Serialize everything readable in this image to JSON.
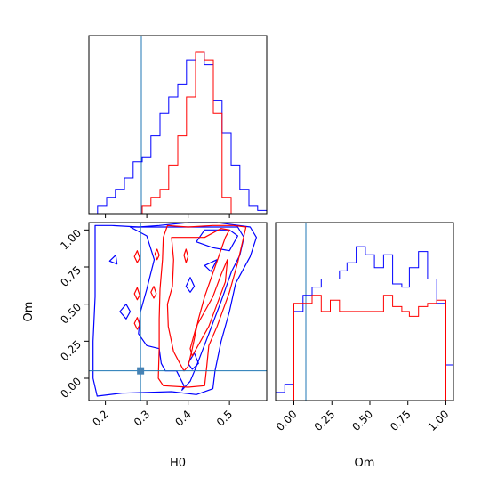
{
  "chart_data": {
    "type": "corner",
    "parameters": [
      "H0",
      "Om"
    ],
    "xlabels": {
      "H0": "H0",
      "Om": "Om"
    },
    "ylabel_lower_left": "Om",
    "truth": {
      "H0": 0.285,
      "Om": 0.05
    },
    "truth_color": "#1f77b4",
    "series": [
      {
        "color": "#0000ff"
      },
      {
        "color": "#ff0000"
      }
    ],
    "panels": [
      {
        "id": "hist-H0",
        "type": "histogram-step",
        "xlim": [
          0.16,
          0.59
        ],
        "bin_edges": [
          0.16,
          0.181,
          0.203,
          0.224,
          0.246,
          0.267,
          0.289,
          0.31,
          0.332,
          0.353,
          0.375,
          0.396,
          0.418,
          0.439,
          0.461,
          0.482,
          0.504,
          0.525,
          0.547,
          0.568,
          0.59
        ],
        "counts_blue": [
          0.0,
          0.05,
          0.1,
          0.15,
          0.22,
          0.32,
          0.35,
          0.48,
          0.62,
          0.72,
          0.8,
          0.95,
          1.0,
          0.92,
          0.7,
          0.5,
          0.3,
          0.15,
          0.05,
          0.02
        ],
        "counts_red": [
          0.0,
          0.0,
          0.0,
          0.0,
          0.0,
          0.0,
          0.05,
          0.1,
          0.15,
          0.3,
          0.48,
          0.72,
          1.0,
          0.95,
          0.62,
          0.1,
          0.0,
          0.0,
          0.0,
          0.0
        ],
        "xticks": [
          0.2,
          0.3,
          0.4,
          0.5
        ]
      },
      {
        "id": "hist-Om",
        "type": "histogram-step",
        "xlim": [
          -0.12,
          1.05
        ],
        "bin_edges": [
          -0.12,
          -0.06,
          0.0,
          0.06,
          0.12,
          0.18,
          0.24,
          0.3,
          0.35,
          0.41,
          0.47,
          0.53,
          0.59,
          0.65,
          0.71,
          0.76,
          0.82,
          0.88,
          0.94,
          1.0,
          1.05
        ],
        "counts_blue": [
          0.05,
          0.1,
          0.55,
          0.65,
          0.7,
          0.75,
          0.75,
          0.8,
          0.85,
          0.95,
          0.9,
          0.82,
          0.9,
          0.72,
          0.7,
          0.82,
          0.92,
          0.75,
          0.6,
          0.22
        ],
        "counts_red": [
          0.0,
          0.0,
          0.6,
          0.6,
          0.65,
          0.55,
          0.62,
          0.55,
          0.55,
          0.55,
          0.55,
          0.55,
          0.65,
          0.58,
          0.55,
          0.52,
          0.58,
          0.6,
          0.62,
          0.0
        ],
        "xticks": [
          0.0,
          0.25,
          0.5,
          0.75,
          1.0
        ],
        "xticklabels": [
          "0.00",
          "0.25",
          "0.50",
          "0.75",
          "1.00"
        ]
      },
      {
        "id": "contour-H0-Om",
        "type": "contour",
        "xlim": [
          0.16,
          0.59
        ],
        "ylim": [
          -0.15,
          1.05
        ],
        "xticks": [
          0.2,
          0.3,
          0.4,
          0.5
        ],
        "xticklabels": [
          "0.2",
          "0.3",
          "0.4",
          "0.5"
        ],
        "yticks": [
          0.0,
          0.25,
          0.5,
          0.75,
          1.0
        ],
        "yticklabels": [
          "0.00",
          "0.25",
          "0.50",
          "0.75",
          "1.00"
        ],
        "contours_blue": [
          [
            [
              0.175,
              1.03
            ],
            [
              0.215,
              1.03
            ],
            [
              0.28,
              1.02
            ],
            [
              0.33,
              1.03
            ],
            [
              0.4,
              1.05
            ],
            [
              0.47,
              1.05
            ],
            [
              0.55,
              1.02
            ],
            [
              0.565,
              0.95
            ],
            [
              0.55,
              0.82
            ],
            [
              0.515,
              0.64
            ],
            [
              0.5,
              0.45
            ],
            [
              0.48,
              0.25
            ],
            [
              0.465,
              0.05
            ],
            [
              0.46,
              -0.07
            ],
            [
              0.42,
              -0.11
            ],
            [
              0.36,
              -0.09
            ],
            [
              0.24,
              -0.1
            ],
            [
              0.18,
              -0.12
            ],
            [
              0.17,
              0.0
            ],
            [
              0.17,
              0.25
            ],
            [
              0.175,
              0.55
            ],
            [
              0.175,
              0.8
            ],
            [
              0.175,
              1.03
            ]
          ],
          [
            [
              0.235,
              0.45
            ],
            [
              0.25,
              0.5
            ],
            [
              0.26,
              0.45
            ],
            [
              0.25,
              0.4
            ],
            [
              0.235,
              0.45
            ]
          ],
          [
            [
              0.21,
              0.79
            ],
            [
              0.225,
              0.83
            ],
            [
              0.228,
              0.77
            ],
            [
              0.21,
              0.79
            ]
          ],
          [
            [
              0.26,
              1.02
            ],
            [
              0.3,
              0.96
            ],
            [
              0.318,
              0.8
            ],
            [
              0.3,
              0.6
            ],
            [
              0.285,
              0.45
            ],
            [
              0.28,
              0.3
            ],
            [
              0.3,
              0.22
            ],
            [
              0.33,
              0.2
            ],
            [
              0.335,
              0.1
            ],
            [
              0.345,
              0.05
            ],
            [
              0.372,
              0.05
            ],
            [
              0.39,
              -0.05
            ],
            [
              0.385,
              -0.08
            ],
            [
              0.405,
              -0.02
            ],
            [
              0.42,
              0.08
            ],
            [
              0.45,
              0.3
            ],
            [
              0.48,
              0.52
            ],
            [
              0.505,
              0.72
            ],
            [
              0.525,
              0.83
            ],
            [
              0.535,
              0.95
            ],
            [
              0.52,
              1.02
            ],
            [
              0.4,
              1.02
            ],
            [
              0.3,
              1.02
            ],
            [
              0.26,
              1.02
            ]
          ],
          [
            [
              0.42,
              0.92
            ],
            [
              0.46,
              0.88
            ],
            [
              0.5,
              0.86
            ],
            [
              0.52,
              0.96
            ],
            [
              0.5,
              1.0
            ],
            [
              0.44,
              1.0
            ],
            [
              0.42,
              0.92
            ]
          ],
          [
            [
              0.44,
              0.76
            ],
            [
              0.47,
              0.8
            ],
            [
              0.455,
              0.72
            ],
            [
              0.44,
              0.76
            ]
          ],
          [
            [
              0.395,
              0.62
            ],
            [
              0.405,
              0.68
            ],
            [
              0.415,
              0.62
            ],
            [
              0.405,
              0.58
            ],
            [
              0.395,
              0.62
            ]
          ],
          [
            [
              0.4,
              0.1
            ],
            [
              0.415,
              0.17
            ],
            [
              0.425,
              0.1
            ],
            [
              0.41,
              0.06
            ],
            [
              0.4,
              0.1
            ]
          ]
        ],
        "contours_red": [
          [
            [
              0.328,
              0.0
            ],
            [
              0.34,
              -0.05
            ],
            [
              0.4,
              -0.06
            ],
            [
              0.44,
              -0.05
            ],
            [
              0.445,
              0.08
            ],
            [
              0.45,
              0.22
            ],
            [
              0.47,
              0.35
            ],
            [
              0.5,
              0.58
            ],
            [
              0.52,
              0.78
            ],
            [
              0.54,
              1.02
            ],
            [
              0.51,
              1.03
            ],
            [
              0.46,
              1.03
            ],
            [
              0.4,
              1.02
            ],
            [
              0.35,
              1.03
            ],
            [
              0.34,
              0.95
            ],
            [
              0.338,
              0.8
            ],
            [
              0.332,
              0.6
            ],
            [
              0.33,
              0.4
            ],
            [
              0.33,
              0.2
            ],
            [
              0.328,
              0.0
            ]
          ],
          [
            [
              0.36,
              0.95
            ],
            [
              0.365,
              0.8
            ],
            [
              0.362,
              0.62
            ],
            [
              0.35,
              0.5
            ],
            [
              0.352,
              0.35
            ],
            [
              0.365,
              0.18
            ],
            [
              0.38,
              0.1
            ],
            [
              0.39,
              0.05
            ],
            [
              0.4,
              0.08
            ],
            [
              0.41,
              0.2
            ],
            [
              0.425,
              0.4
            ],
            [
              0.44,
              0.55
            ],
            [
              0.465,
              0.75
            ],
            [
              0.49,
              0.95
            ],
            [
              0.5,
              1.0
            ],
            [
              0.48,
              1.01
            ],
            [
              0.44,
              0.95
            ],
            [
              0.4,
              0.95
            ],
            [
              0.36,
              0.95
            ]
          ],
          [
            [
              0.405,
              0.2
            ],
            [
              0.42,
              0.35
            ],
            [
              0.44,
              0.45
            ],
            [
              0.46,
              0.55
            ],
            [
              0.48,
              0.7
            ],
            [
              0.495,
              0.8
            ],
            [
              0.49,
              0.65
            ],
            [
              0.47,
              0.5
            ],
            [
              0.45,
              0.35
            ],
            [
              0.43,
              0.25
            ],
            [
              0.41,
              0.15
            ],
            [
              0.405,
              0.2
            ]
          ],
          [
            [
              0.27,
              0.82
            ],
            [
              0.277,
              0.86
            ],
            [
              0.283,
              0.81
            ],
            [
              0.277,
              0.78
            ],
            [
              0.27,
              0.82
            ]
          ],
          [
            [
              0.32,
              0.84
            ],
            [
              0.325,
              0.87
            ],
            [
              0.33,
              0.83
            ],
            [
              0.325,
              0.8
            ],
            [
              0.32,
              0.84
            ]
          ],
          [
            [
              0.39,
              0.83
            ],
            [
              0.395,
              0.87
            ],
            [
              0.4,
              0.82
            ],
            [
              0.395,
              0.78
            ],
            [
              0.39,
              0.83
            ]
          ],
          [
            [
              0.27,
              0.57
            ],
            [
              0.277,
              0.61
            ],
            [
              0.283,
              0.56
            ],
            [
              0.277,
              0.53
            ],
            [
              0.27,
              0.57
            ]
          ],
          [
            [
              0.31,
              0.58
            ],
            [
              0.317,
              0.62
            ],
            [
              0.323,
              0.57
            ],
            [
              0.317,
              0.54
            ],
            [
              0.31,
              0.58
            ]
          ],
          [
            [
              0.27,
              0.37
            ],
            [
              0.277,
              0.41
            ],
            [
              0.283,
              0.36
            ],
            [
              0.277,
              0.33
            ],
            [
              0.27,
              0.37
            ]
          ]
        ],
        "truth_marker": {
          "x": 0.285,
          "y": 0.05
        }
      }
    ]
  }
}
